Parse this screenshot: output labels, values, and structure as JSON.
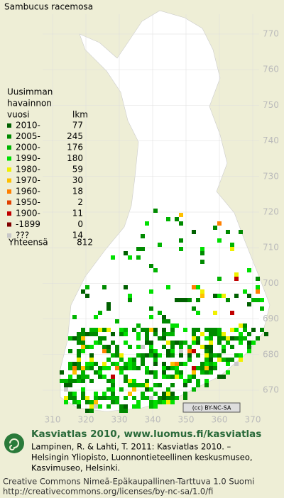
{
  "title": "Sambucus racemosa",
  "legend": {
    "heading": [
      "Uusimman",
      "havainnon",
      "vuosi"
    ],
    "count_heading": "lkm",
    "rows": [
      {
        "label": "2010-",
        "count": 77,
        "color": "#006000"
      },
      {
        "label": "2005-",
        "count": 245,
        "color": "#008a00"
      },
      {
        "label": "2000-",
        "count": 176,
        "color": "#00b400"
      },
      {
        "label": "1990-",
        "count": 180,
        "color": "#00e000"
      },
      {
        "label": "1980-",
        "count": 59,
        "color": "#f0f000"
      },
      {
        "label": "1970-",
        "count": 30,
        "color": "#ffc000"
      },
      {
        "label": "1960-",
        "count": 18,
        "color": "#ff8000"
      },
      {
        "label": "1950-",
        "count": 2,
        "color": "#e04000"
      },
      {
        "label": "1900-",
        "count": 11,
        "color": "#c00000"
      },
      {
        "label": "-1899",
        "count": 0,
        "color": "#800000"
      },
      {
        "label": "???",
        "count": 14,
        "color": "#c8c8c8"
      }
    ],
    "total": {
      "label": "Yhteensä",
      "count": 812
    }
  },
  "grid": {
    "y_labels": [
      770,
      760,
      750,
      740,
      730,
      720,
      710,
      700,
      690,
      680,
      670
    ],
    "x_labels": [
      310,
      320,
      330,
      340,
      350,
      360,
      370
    ]
  },
  "license_badge": "(cc) BY-NC-SA",
  "credits": {
    "heading": "Kasviatlas 2010, www.luomus.fi/kasviatlas",
    "lines": [
      "Lampinen, R. & Lahti, T. 2011: Kasviatlas 2010. –",
      "Helsingin Yliopisto, Luonnontieteellinen keskusmuseo,",
      "Kasvimuseo, Helsinki."
    ]
  },
  "footer": [
    "Creative Commons Nimeä-Epäkaupallinen-Tarttuva 1.0 Suomi",
    "http://creativecommons.org/licenses/by-nc-sa/1.0/fi"
  ]
}
